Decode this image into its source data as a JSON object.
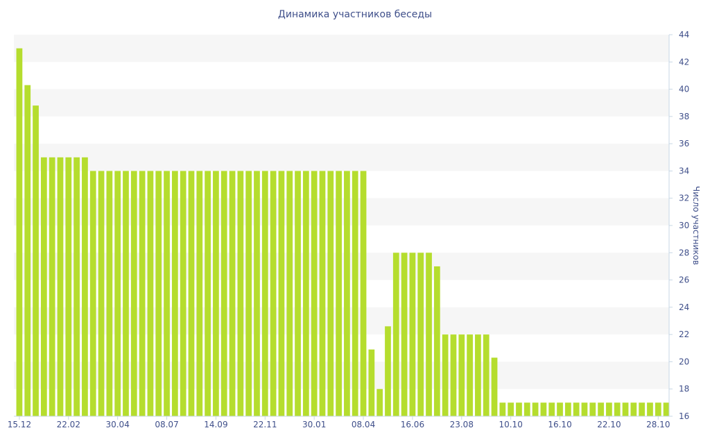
{
  "chart_data": {
    "type": "bar",
    "title": "Динамика участников беседы",
    "xlabel": "",
    "ylabel": "Число участников",
    "ylim": [
      16,
      44
    ],
    "y_ticks": [
      16,
      18,
      20,
      22,
      24,
      26,
      28,
      30,
      32,
      34,
      36,
      38,
      40,
      42,
      44
    ],
    "grid": "alternating horizontal bands",
    "y_axis_position": "right",
    "colors": {
      "bar": "#b5dd2e",
      "band": "#f6f6f6",
      "axis_text": "#3f4f8a",
      "axis_line": "#c7d7e5"
    },
    "x_tick_labels": [
      {
        "index": 0,
        "label": "15.12"
      },
      {
        "index": 6,
        "label": "22.02"
      },
      {
        "index": 12,
        "label": "30.04"
      },
      {
        "index": 18,
        "label": "08.07"
      },
      {
        "index": 24,
        "label": "14.09"
      },
      {
        "index": 30,
        "label": "22.11"
      },
      {
        "index": 36,
        "label": "30.01"
      },
      {
        "index": 42,
        "label": "08.04"
      },
      {
        "index": 48,
        "label": "16.06"
      },
      {
        "index": 54,
        "label": "23.08"
      },
      {
        "index": 60,
        "label": "10.10"
      },
      {
        "index": 66,
        "label": "16.10"
      },
      {
        "index": 72,
        "label": "22.10"
      },
      {
        "index": 78,
        "label": "28.10"
      }
    ],
    "values": [
      43,
      40.3,
      38.8,
      35,
      35,
      35,
      35,
      35,
      35,
      34,
      34,
      34,
      34,
      34,
      34,
      34,
      34,
      34,
      34,
      34,
      34,
      34,
      34,
      34,
      34,
      34,
      34,
      34,
      34,
      34,
      34,
      34,
      34,
      34,
      34,
      34,
      34,
      34,
      34,
      34,
      34,
      34,
      34,
      20.9,
      18,
      22.6,
      28,
      28,
      28,
      28,
      28,
      27,
      22,
      22,
      22,
      22,
      22,
      22,
      20.3,
      17,
      17,
      17,
      17,
      17,
      17,
      17,
      17,
      17,
      17,
      17,
      17,
      17,
      17,
      17,
      17,
      17,
      17,
      17,
      17,
      17
    ]
  }
}
